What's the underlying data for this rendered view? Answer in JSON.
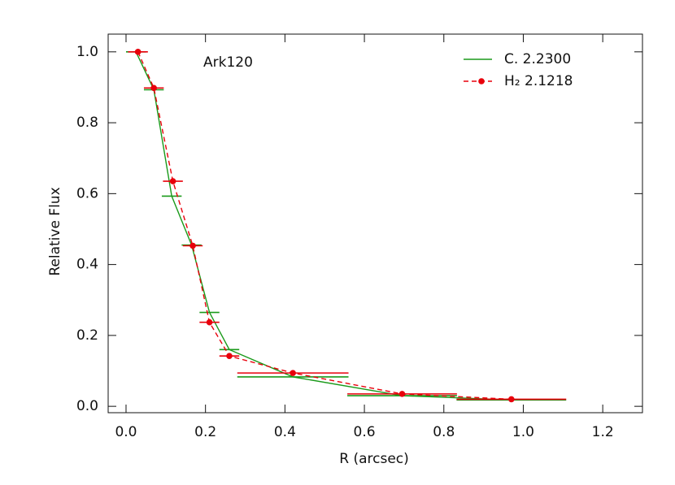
{
  "chart_data": {
    "type": "line",
    "annotations": [
      "Ark120"
    ],
    "x_label": "R (arcsec)",
    "y_label": "Relative Flux",
    "xlim": [
      -0.045,
      1.3
    ],
    "ylim": [
      -0.018,
      1.05
    ],
    "xticks": [
      {
        "value": 0,
        "label": "0.0"
      },
      0.2,
      0.4,
      0.6,
      0.8,
      {
        "value": 1,
        "label": "1.0"
      },
      1.2
    ],
    "yticks": [
      {
        "value": 0,
        "label": "0.0"
      },
      0.2,
      0.4,
      0.6,
      0.8,
      {
        "value": 1,
        "label": "1.0"
      }
    ],
    "legend": "upper right",
    "series": [
      {
        "name": "C. 2.2300",
        "color": "#1a9a1a",
        "dash": false,
        "markers": false,
        "x": [
          0.025,
          0.07,
          0.115,
          0.165,
          0.21,
          0.26,
          0.42,
          0.695,
          0.97
        ],
        "values": [
          1.0,
          0.893,
          0.593,
          0.455,
          0.265,
          0.16,
          0.083,
          0.03,
          0.018
        ],
        "xerr": [
          0.025,
          0.025,
          0.025,
          0.025,
          0.025,
          0.025,
          0.14,
          0.138,
          0.138
        ]
      },
      {
        "name": "H₂ 2.1218",
        "color": "#e8000b",
        "dash": true,
        "markers": true,
        "x": [
          0.03,
          0.07,
          0.118,
          0.168,
          0.21,
          0.26,
          0.42,
          0.695,
          0.97
        ],
        "values": [
          1.0,
          0.898,
          0.635,
          0.453,
          0.237,
          0.142,
          0.094,
          0.035,
          0.02
        ],
        "xerr": [
          0.025,
          0.025,
          0.025,
          0.025,
          0.025,
          0.025,
          0.14,
          0.138,
          0.138
        ]
      }
    ]
  }
}
